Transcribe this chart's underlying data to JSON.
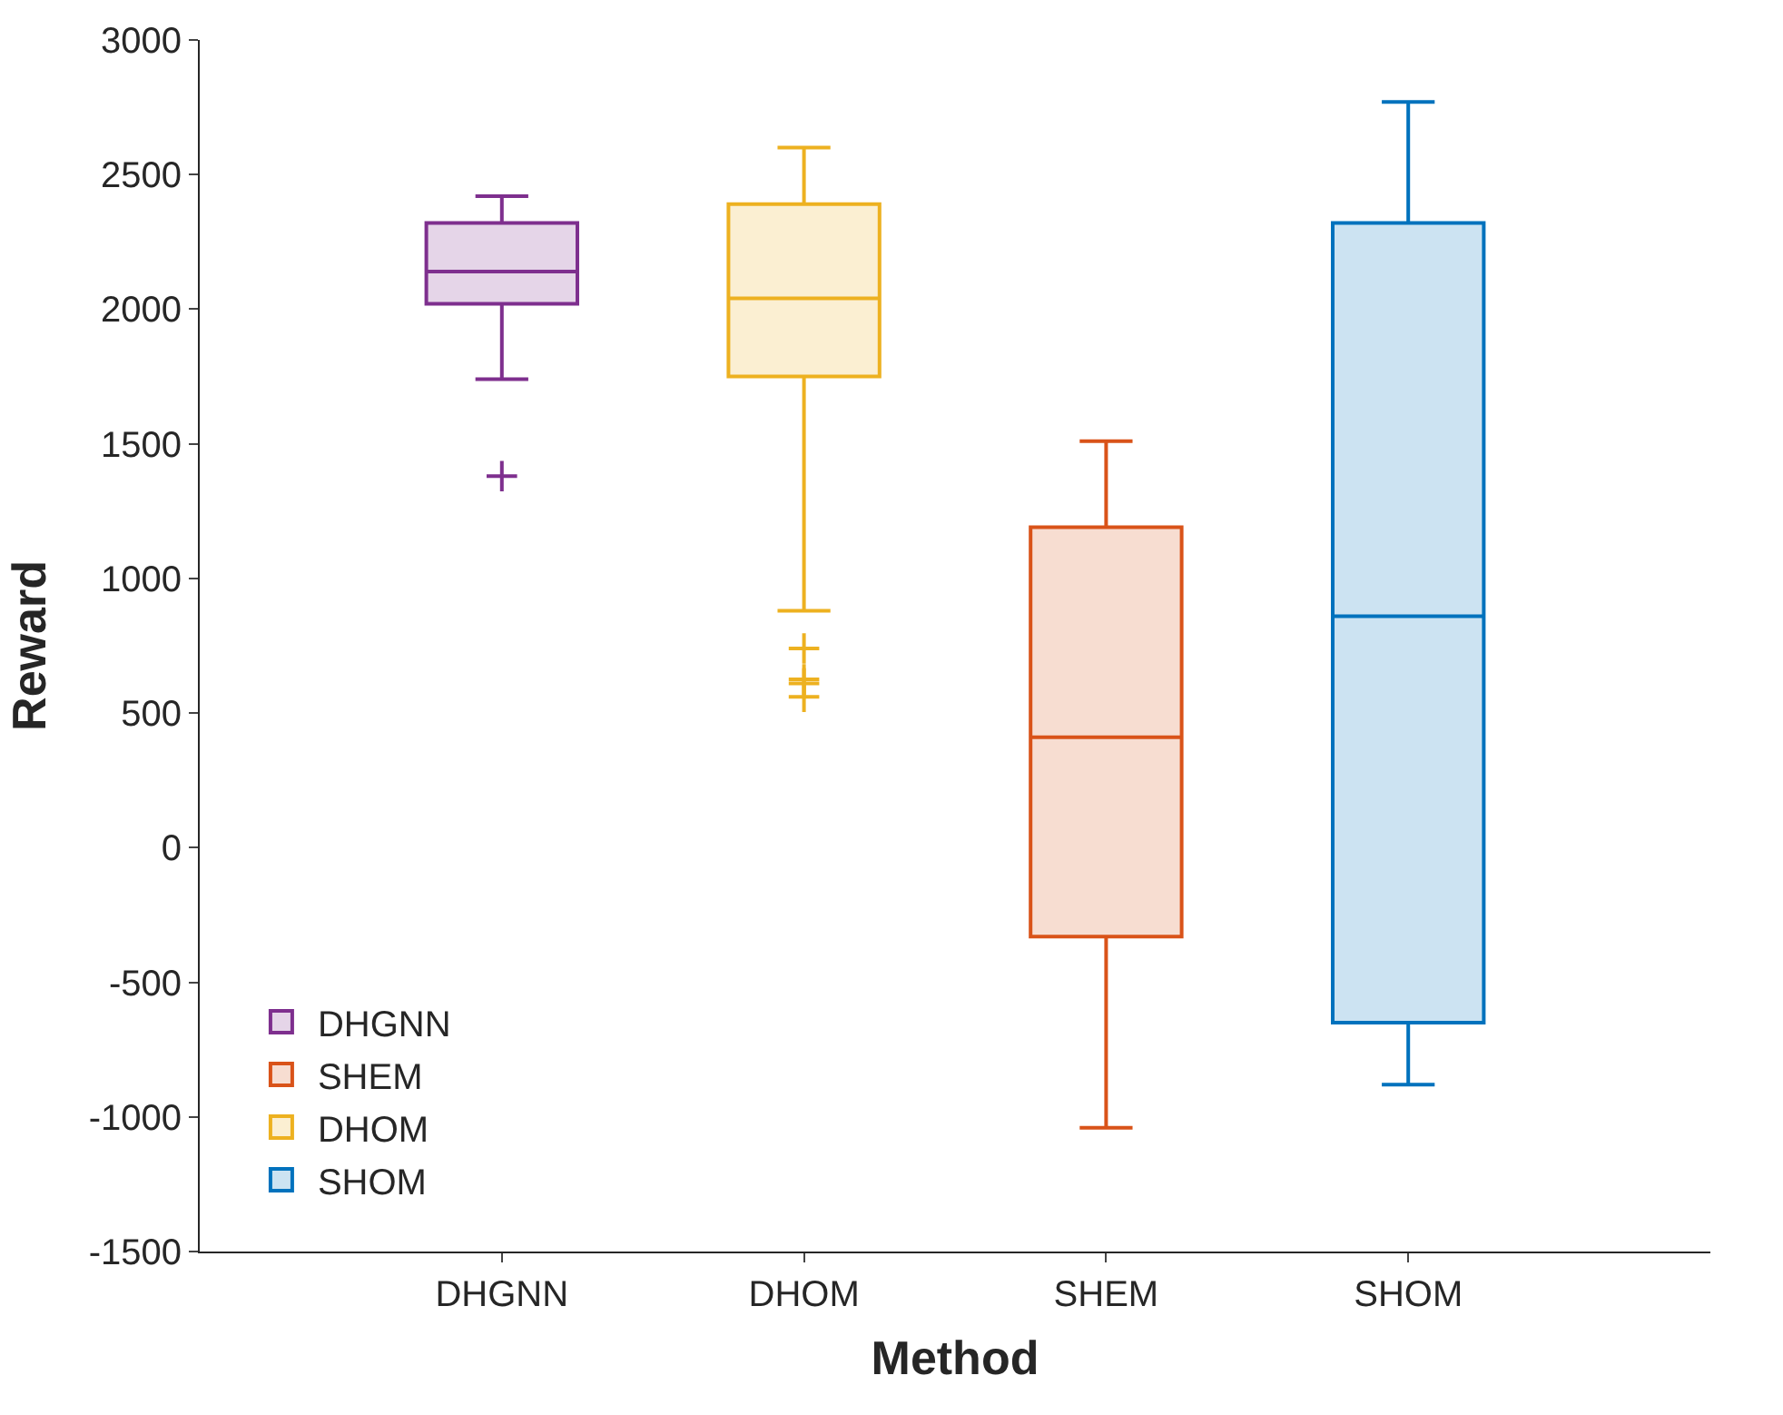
{
  "chart_data": {
    "type": "box",
    "xlabel": "Method",
    "ylabel": "Reward",
    "categories": [
      "DHGNN",
      "DHOM",
      "SHEM",
      "SHOM"
    ],
    "ylim": [
      -1500,
      3000
    ],
    "yticks": [
      -1500,
      -1000,
      -500,
      0,
      500,
      1000,
      1500,
      2000,
      2500,
      3000
    ],
    "legend": "bottom left",
    "marker": "cross",
    "series": [
      {
        "name": "DHGNN",
        "color": "#7e2f8e",
        "boxes": [
          {
            "low": 1740,
            "q1": 2020,
            "median": 2140,
            "q3": 2320,
            "high": 2420,
            "outliers": [
              1380
            ]
          },
          null,
          null,
          null
        ]
      },
      {
        "name": "SHEM",
        "color": "#d95319",
        "boxes": [
          null,
          null,
          {
            "low": -1040,
            "q1": -330,
            "median": 410,
            "q3": 1190,
            "high": 1510
          },
          null
        ]
      },
      {
        "name": "DHOM",
        "color": "#edb120",
        "boxes": [
          null,
          {
            "low": 880,
            "q1": 1750,
            "median": 2040,
            "q3": 2390,
            "high": 2600,
            "outliers": [
              740,
              625,
              610,
              560
            ]
          },
          null,
          null
        ]
      },
      {
        "name": "SHOM",
        "color": "#0072bd",
        "boxes": [
          null,
          null,
          null,
          {
            "low": -880,
            "q1": -650,
            "median": 860,
            "q3": 2320,
            "high": 2770
          }
        ]
      }
    ]
  }
}
